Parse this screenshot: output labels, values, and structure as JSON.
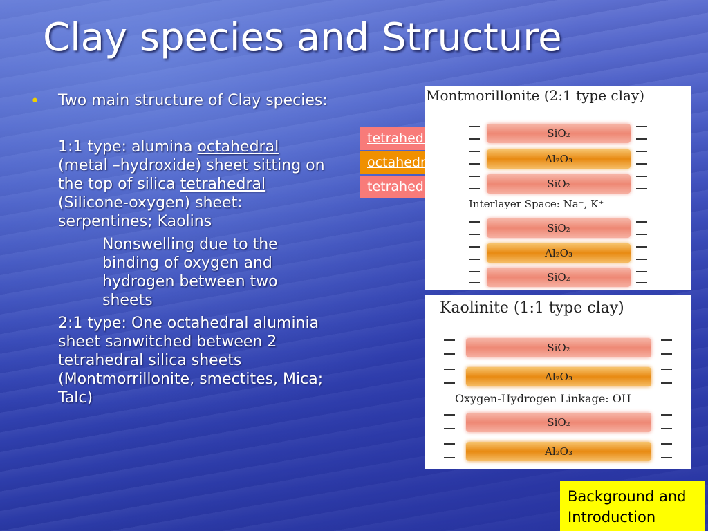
{
  "slide": {
    "title": "Clay species and Structure",
    "bullet_glyph": "•",
    "content": {
      "intro": "Two main structure of Clay species:",
      "type11_a": "1:1 type: alumina ",
      "type11_octa": "octahedral",
      "type11_b": " (metal –hydroxide) sheet sitting on the top of silica ",
      "type11_tetra": "tetrahedral ",
      "type11_c": "(Silicone-oxygen) sheet: serpentines; Kaolins",
      "nonswelling": "Nonswelling due to the binding of oxygen and hydrogen between two sheets",
      "type21": "2:1 type: One octahedral aluminia sheet sanwitched between 2 tetrahedral silica sheets (Montmorrillonite, smectites, Mica; Talc)"
    }
  },
  "labels": {
    "tetra_top": "tetrahedral",
    "octa": "octahedral",
    "tetra_bottom": "tetrahedral"
  },
  "montmorillonite": {
    "title": "Montmorillonite (2:1 type clay)",
    "layers": [
      "SiO₂",
      "Al₂O₃",
      "SiO₂",
      "SiO₂",
      "Al₂O₃",
      "SiO₂"
    ],
    "interlayer": "Interlayer Space: Na⁺, K⁺"
  },
  "kaolinite": {
    "title": "Kaolinite (1:1 type clay)",
    "layers": [
      "SiO₂",
      "Al₂O₃",
      "SiO₂",
      "Al₂O₃"
    ],
    "linkage": "Oxygen-Hydrogen Linkage: OH"
  },
  "corner_note": {
    "line1": "Background and",
    "line2": "Introduction"
  },
  "colors": {
    "tetra_label_bg": "#f87b79",
    "octa_label_bg": "#f09000",
    "corner_bg": "#ffff00",
    "bullet": "#f0d000"
  }
}
